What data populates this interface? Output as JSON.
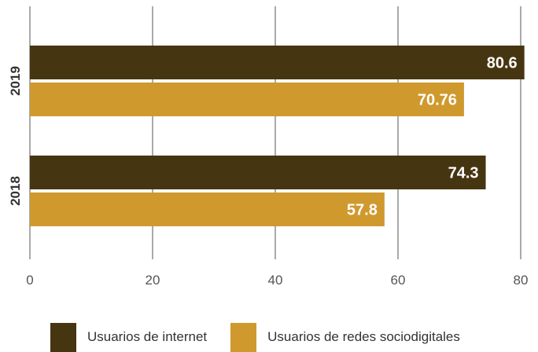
{
  "chart_data": {
    "type": "bar",
    "orientation": "horizontal",
    "categories": [
      "2019",
      "2018"
    ],
    "series": [
      {
        "name": "Usuarios de internet",
        "values": [
          80.6,
          74.3
        ],
        "color": "#463511"
      },
      {
        "name": "Usuarios de redes sociodigitales",
        "values": [
          70.76,
          57.8
        ],
        "color": "#d0992e"
      }
    ],
    "value_labels": [
      [
        "80.6",
        "74.3"
      ],
      [
        "70.76",
        "57.8"
      ]
    ],
    "xlim": [
      0,
      80
    ],
    "xticks": [
      0,
      20,
      40,
      60,
      80
    ],
    "xtick_labels": [
      "0",
      "20",
      "40",
      "60",
      "80"
    ],
    "grid": "vertical",
    "legend_position": "bottom"
  }
}
